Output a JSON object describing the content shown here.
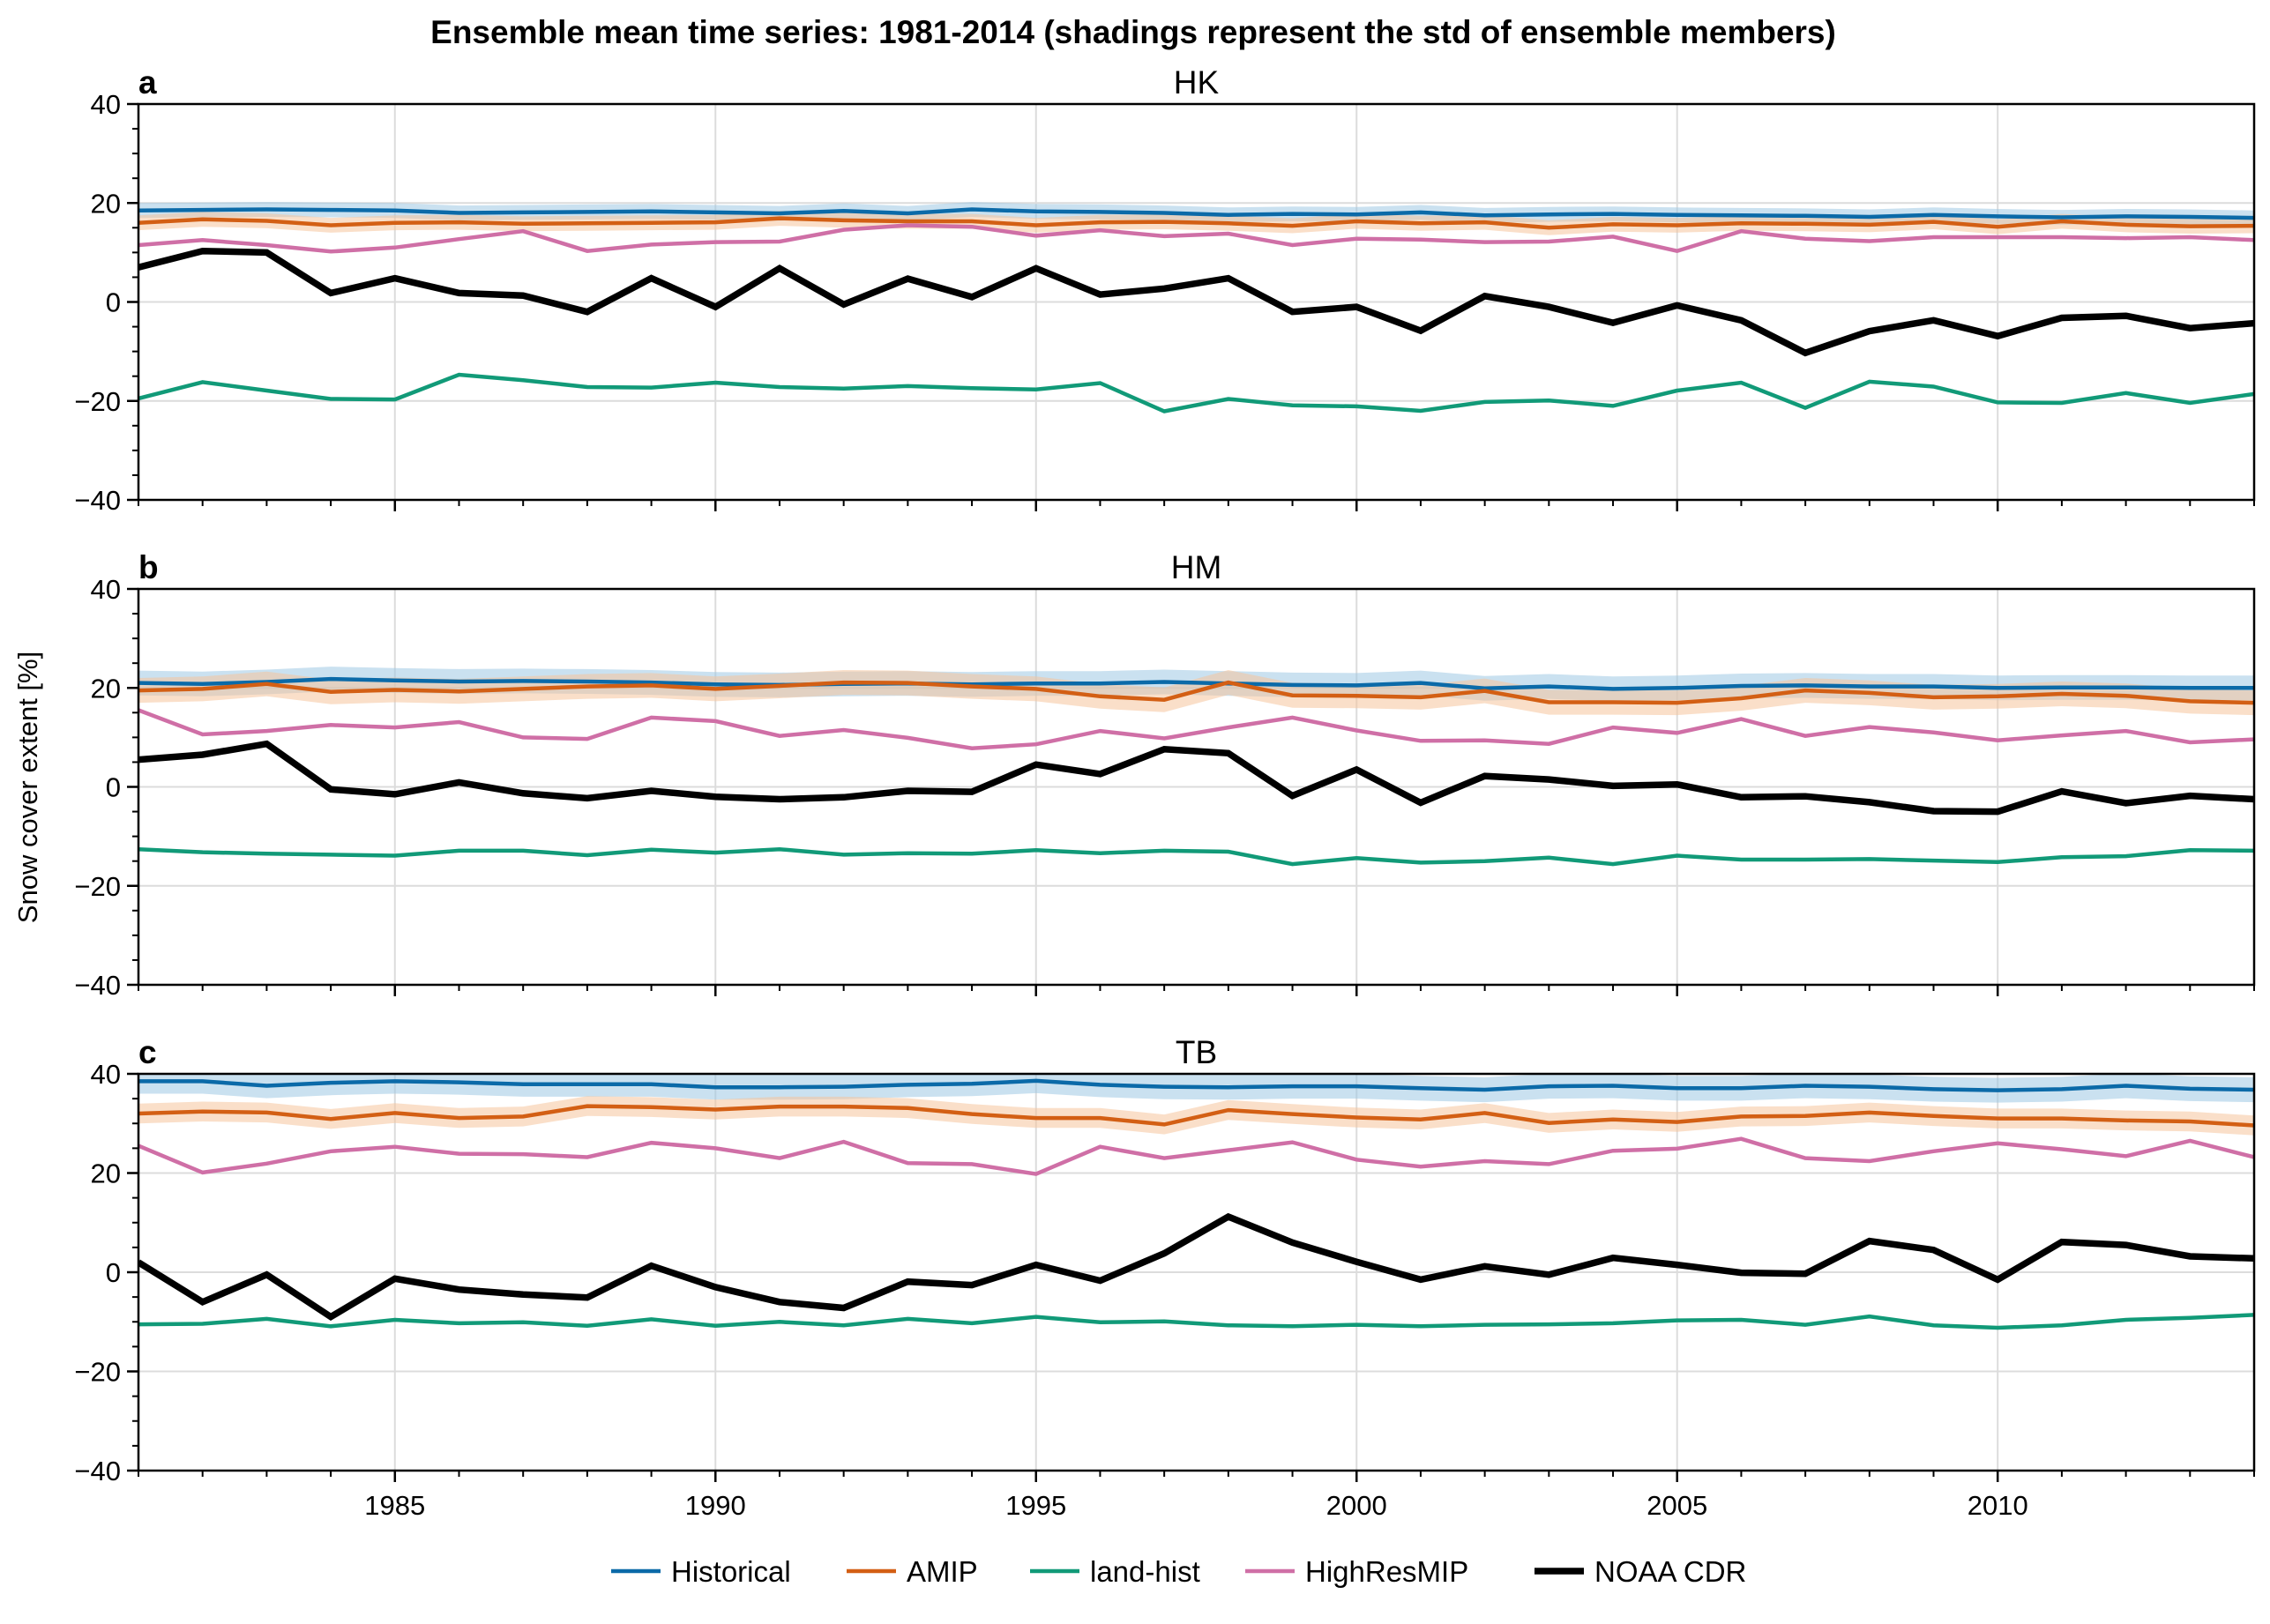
{
  "figure": {
    "title": "Ensemble mean time series: 1981-2014 (shadings represent the std of ensemble members)",
    "ylabel": "Snow cover extent [%]",
    "colors": {
      "Historical": "#0b6aa8",
      "AMIP": "#d35f14",
      "land-hist": "#119a78",
      "HighResMIP": "#cf6fa6",
      "NOAA CDR": "#000000",
      "Historical_shade": "#9ec8e3",
      "AMIP_shade": "#f6c49c",
      "grid": "#dcdcdc"
    }
  },
  "legend": {
    "placement": "bottom-center",
    "entries": [
      "Historical",
      "AMIP",
      "land-hist",
      "HighResMIP",
      "NOAA CDR"
    ]
  },
  "chart_data": [
    {
      "type": "line",
      "panel": "a",
      "title": "HK",
      "xlabel": "",
      "ylabel": "Snow cover extent [%]",
      "xlim": [
        1981,
        2014
      ],
      "ylim": [
        -40,
        40
      ],
      "xticks": [
        1985,
        1990,
        1995,
        2000,
        2005,
        2010
      ],
      "yticks": [
        -40,
        -20,
        0,
        20,
        40
      ],
      "grid": true,
      "x": [
        1981,
        1982,
        1983,
        1984,
        1985,
        1986,
        1987,
        1988,
        1989,
        1990,
        1991,
        1992,
        1993,
        1994,
        1995,
        1996,
        1997,
        1998,
        1999,
        2000,
        2001,
        2002,
        2003,
        2004,
        2005,
        2006,
        2007,
        2008,
        2009,
        2010,
        2011,
        2012,
        2013,
        2014
      ],
      "series": [
        {
          "name": "Historical",
          "std": 1.5,
          "values": [
            18.5,
            18.6,
            18.7,
            18.6,
            18.5,
            18.0,
            18.1,
            18.2,
            18.3,
            18.1,
            17.9,
            18.4,
            17.9,
            18.7,
            18.3,
            18.2,
            18.0,
            17.6,
            17.8,
            17.7,
            18.1,
            17.5,
            17.7,
            17.8,
            17.6,
            17.5,
            17.4,
            17.2,
            17.6,
            17.3,
            17.1,
            17.3,
            17.2,
            17.0
          ]
        },
        {
          "name": "AMIP",
          "std": 1.5,
          "values": [
            16.0,
            16.7,
            16.4,
            15.5,
            16.0,
            16.1,
            15.8,
            15.9,
            16.0,
            16.1,
            16.9,
            16.5,
            16.3,
            16.3,
            15.5,
            16.1,
            16.2,
            15.9,
            15.4,
            16.3,
            15.9,
            16.1,
            15.0,
            15.7,
            15.5,
            15.9,
            15.8,
            15.6,
            16.2,
            15.2,
            16.3,
            15.6,
            15.3,
            15.4
          ]
        },
        {
          "name": "land-hist",
          "values": [
            -19.5,
            -16.2,
            -17.9,
            -19.6,
            -19.7,
            -14.7,
            -15.8,
            -17.2,
            -17.3,
            -16.3,
            -17.2,
            -17.5,
            -17.0,
            -17.4,
            -17.7,
            -16.4,
            -22.1,
            -19.6,
            -20.9,
            -21.1,
            -22.0,
            -20.2,
            -19.9,
            -21.0,
            -17.9,
            -16.3,
            -21.4,
            -16.1,
            -17.1,
            -20.3,
            -20.4,
            -18.4,
            -20.4,
            -18.6
          ]
        },
        {
          "name": "HighResMIP",
          "values": [
            11.5,
            12.5,
            11.5,
            10.2,
            11.0,
            12.7,
            14.3,
            10.3,
            11.6,
            12.1,
            12.2,
            14.6,
            15.5,
            15.2,
            13.4,
            14.5,
            13.3,
            13.8,
            11.5,
            12.8,
            12.6,
            12.1,
            12.2,
            13.2,
            10.3,
            14.3,
            12.8,
            12.3,
            13.1,
            13.1,
            13.1,
            12.9,
            13.1,
            12.5
          ]
        },
        {
          "name": "NOAA CDR",
          "values": [
            7.0,
            10.3,
            10.0,
            1.8,
            4.8,
            1.8,
            1.3,
            -2.0,
            4.8,
            -1.0,
            6.8,
            -0.5,
            4.7,
            1.0,
            6.8,
            1.5,
            2.7,
            4.8,
            -2.0,
            -1.0,
            -5.8,
            1.2,
            -1.0,
            -4.2,
            -0.7,
            -3.7,
            -10.3,
            -5.9,
            -3.7,
            -6.9,
            -3.2,
            -2.8,
            -5.3,
            -4.3
          ]
        }
      ]
    },
    {
      "type": "line",
      "panel": "b",
      "title": "HM",
      "xlabel": "",
      "ylabel": "Snow cover extent [%]",
      "xlim": [
        1981,
        2014
      ],
      "ylim": [
        -40,
        40
      ],
      "xticks": [
        1985,
        1990,
        1995,
        2000,
        2005,
        2010
      ],
      "yticks": [
        -40,
        -20,
        0,
        20,
        40
      ],
      "grid": true,
      "x": [
        1981,
        1982,
        1983,
        1984,
        1985,
        1986,
        1987,
        1988,
        1989,
        1990,
        1991,
        1992,
        1993,
        1994,
        1995,
        1996,
        1997,
        1998,
        1999,
        2000,
        2001,
        2002,
        2003,
        2004,
        2005,
        2006,
        2007,
        2008,
        2009,
        2010,
        2011,
        2012,
        2013,
        2014
      ],
      "series": [
        {
          "name": "Historical",
          "std": 2.5,
          "values": [
            21.0,
            20.8,
            21.2,
            21.8,
            21.5,
            21.3,
            21.4,
            21.3,
            21.1,
            20.7,
            20.6,
            20.8,
            20.9,
            20.7,
            20.9,
            20.9,
            21.2,
            20.9,
            20.6,
            20.5,
            21.0,
            19.9,
            20.3,
            19.8,
            20.0,
            20.4,
            20.5,
            20.3,
            20.3,
            20.0,
            20.1,
            20.1,
            20.0,
            20.0
          ]
        },
        {
          "name": "AMIP",
          "std": 2.5,
          "values": [
            19.5,
            19.8,
            20.8,
            19.2,
            19.6,
            19.3,
            19.8,
            20.3,
            20.5,
            19.8,
            20.4,
            21.1,
            21.0,
            20.3,
            19.8,
            18.3,
            17.6,
            21.1,
            18.5,
            18.4,
            18.1,
            19.4,
            17.1,
            17.1,
            17.0,
            17.9,
            19.5,
            19.0,
            18.1,
            18.3,
            18.8,
            18.4,
            17.3,
            17.0
          ]
        },
        {
          "name": "land-hist",
          "values": [
            -12.6,
            -13.2,
            -13.5,
            -13.7,
            -13.9,
            -12.9,
            -12.9,
            -13.8,
            -12.7,
            -13.3,
            -12.6,
            -13.7,
            -13.4,
            -13.5,
            -12.8,
            -13.4,
            -12.9,
            -13.1,
            -15.6,
            -14.4,
            -15.3,
            -15.0,
            -14.3,
            -15.6,
            -13.9,
            -14.7,
            -14.7,
            -14.6,
            -14.9,
            -15.2,
            -14.2,
            -14.0,
            -12.8,
            -12.9
          ]
        },
        {
          "name": "HighResMIP",
          "values": [
            15.5,
            10.6,
            11.3,
            12.5,
            12.0,
            13.1,
            10.0,
            9.7,
            14.0,
            13.3,
            10.3,
            11.5,
            9.9,
            7.8,
            8.6,
            11.3,
            9.8,
            12.0,
            14.0,
            11.4,
            9.3,
            9.4,
            8.7,
            12.0,
            10.9,
            13.7,
            10.3,
            12.1,
            11.0,
            9.4,
            10.4,
            11.3,
            9.0,
            9.6
          ]
        },
        {
          "name": "NOAA CDR",
          "values": [
            5.5,
            6.5,
            8.7,
            -0.5,
            -1.5,
            0.9,
            -1.3,
            -2.3,
            -0.8,
            -2.0,
            -2.5,
            -2.1,
            -0.8,
            -1.0,
            4.5,
            2.6,
            7.6,
            6.8,
            -1.8,
            3.5,
            -3.2,
            2.2,
            1.5,
            0.2,
            0.5,
            -2.1,
            -1.9,
            -3.1,
            -4.9,
            -5.0,
            -0.9,
            -3.3,
            -1.8,
            -2.5
          ]
        }
      ]
    },
    {
      "type": "line",
      "panel": "c",
      "title": "TB",
      "xlabel": "",
      "ylabel": "Snow cover extent [%]",
      "xlim": [
        1981,
        2014
      ],
      "ylim": [
        -40,
        40
      ],
      "xticks": [
        1985,
        1990,
        1995,
        2000,
        2005,
        2010
      ],
      "yticks": [
        -40,
        -20,
        0,
        20,
        40
      ],
      "grid": true,
      "x": [
        1981,
        1982,
        1983,
        1984,
        1985,
        1986,
        1987,
        1988,
        1989,
        1990,
        1991,
        1992,
        1993,
        1994,
        1995,
        1996,
        1997,
        1998,
        1999,
        2000,
        2001,
        2002,
        2003,
        2004,
        2005,
        2006,
        2007,
        2008,
        2009,
        2010,
        2011,
        2012,
        2013,
        2014
      ],
      "series": [
        {
          "name": "Historical",
          "std": 2.5,
          "values": [
            38.5,
            38.5,
            37.6,
            38.2,
            38.5,
            38.3,
            37.9,
            37.9,
            37.9,
            37.3,
            37.3,
            37.4,
            37.8,
            38.0,
            38.6,
            37.8,
            37.4,
            37.3,
            37.5,
            37.5,
            37.1,
            36.8,
            37.5,
            37.6,
            37.1,
            37.1,
            37.6,
            37.4,
            36.9,
            36.7,
            36.9,
            37.6,
            37.0,
            36.8
          ]
        },
        {
          "name": "AMIP",
          "std": 2.0,
          "values": [
            32.0,
            32.4,
            32.2,
            30.9,
            32.1,
            31.1,
            31.4,
            33.5,
            33.3,
            32.8,
            33.4,
            33.4,
            33.1,
            31.9,
            31.1,
            31.1,
            29.8,
            32.7,
            31.9,
            31.2,
            30.8,
            32.1,
            30.1,
            30.8,
            30.3,
            31.4,
            31.5,
            32.2,
            31.5,
            31.0,
            31.0,
            30.6,
            30.4,
            29.6
          ]
        },
        {
          "name": "land-hist",
          "values": [
            -10.5,
            -10.4,
            -9.4,
            -10.9,
            -9.6,
            -10.3,
            -10.1,
            -10.8,
            -9.5,
            -10.8,
            -10.0,
            -10.7,
            -9.4,
            -10.3,
            -9.0,
            -10.1,
            -9.9,
            -10.7,
            -10.9,
            -10.6,
            -10.9,
            -10.6,
            -10.5,
            -10.3,
            -9.7,
            -9.6,
            -10.6,
            -8.9,
            -10.7,
            -11.2,
            -10.7,
            -9.6,
            -9.2,
            -8.6
          ]
        },
        {
          "name": "HighResMIP",
          "values": [
            25.5,
            20.1,
            21.9,
            24.4,
            25.3,
            23.9,
            23.8,
            23.2,
            26.1,
            25.0,
            23.0,
            26.3,
            22.0,
            21.8,
            19.8,
            25.3,
            23.0,
            24.6,
            26.2,
            22.7,
            21.3,
            22.4,
            21.8,
            24.5,
            24.9,
            26.9,
            23.0,
            22.4,
            24.4,
            26.0,
            24.8,
            23.4,
            26.5,
            23.2
          ]
        },
        {
          "name": "NOAA CDR",
          "values": [
            2.0,
            -6.0,
            -0.5,
            -9.0,
            -1.3,
            -3.5,
            -4.5,
            -5.1,
            1.3,
            -3.0,
            -6.0,
            -7.2,
            -1.9,
            -2.6,
            1.5,
            -1.7,
            3.8,
            11.2,
            6.0,
            2.1,
            -1.5,
            1.2,
            -0.5,
            2.9,
            1.5,
            -0.1,
            -0.3,
            6.3,
            4.5,
            -1.5,
            6.1,
            5.5,
            3.2,
            2.8
          ]
        }
      ]
    }
  ]
}
